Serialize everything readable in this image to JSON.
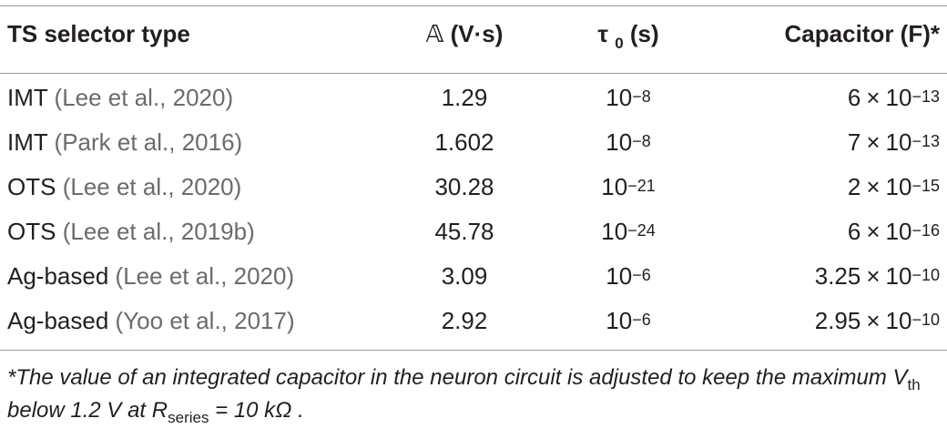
{
  "table": {
    "headers": {
      "type": "TS selector type",
      "a_symbol": "𝔸",
      "a_unit": " (V·s)",
      "tau_symbol": "τ",
      "tau_sub": "0",
      "tau_unit": " (s)",
      "capacitor": "Capacitor (F)*"
    },
    "rows": [
      {
        "type": "IMT",
        "ref": "Lee et al., 2020",
        "a": "1.29",
        "tau_exp": "−8",
        "cap_mant": "6",
        "cap_exp": "−13"
      },
      {
        "type": "IMT",
        "ref": "Park et al., 2016",
        "a": "1.602",
        "tau_exp": "−8",
        "cap_mant": "7",
        "cap_exp": "−13"
      },
      {
        "type": "OTS",
        "ref": "Lee et al., 2020",
        "a": "30.28",
        "tau_exp": "−21",
        "cap_mant": "2",
        "cap_exp": "−15"
      },
      {
        "type": "OTS",
        "ref": "Lee et al., 2019b",
        "a": "45.78",
        "tau_exp": "−24",
        "cap_mant": "6",
        "cap_exp": "−16"
      },
      {
        "type": "Ag-based",
        "ref": "Lee et al., 2020",
        "a": "3.09",
        "tau_exp": "−6",
        "cap_mant": "3.25",
        "cap_exp": "−10"
      },
      {
        "type": "Ag-based",
        "ref": "Yoo et al., 2017",
        "a": "2.92",
        "tau_exp": "−6",
        "cap_mant": "2.95",
        "cap_exp": "−10"
      }
    ],
    "ten": "10",
    "times": "×"
  },
  "footnote": {
    "part1": "*The value of an integrated capacitor in the neuron circuit is adjusted to keep the maximum V",
    "vth_sub": "th",
    "part2": " below 1.2 V at R",
    "r_sub": "series",
    "part3": " = 10 kΩ ."
  }
}
